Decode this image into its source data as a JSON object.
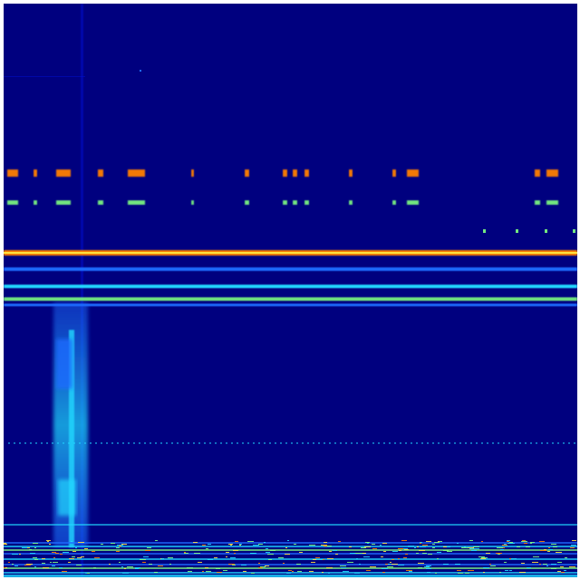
{
  "colormap": "jet",
  "colors": {
    "background": "#00007f",
    "low": "#0010d0",
    "mid_low": "#1e6cff",
    "cyan": "#20d8ff",
    "green": "#80ff80",
    "yellow": "#ffe040",
    "orange": "#ff8000",
    "red": "#d02000"
  }
}
